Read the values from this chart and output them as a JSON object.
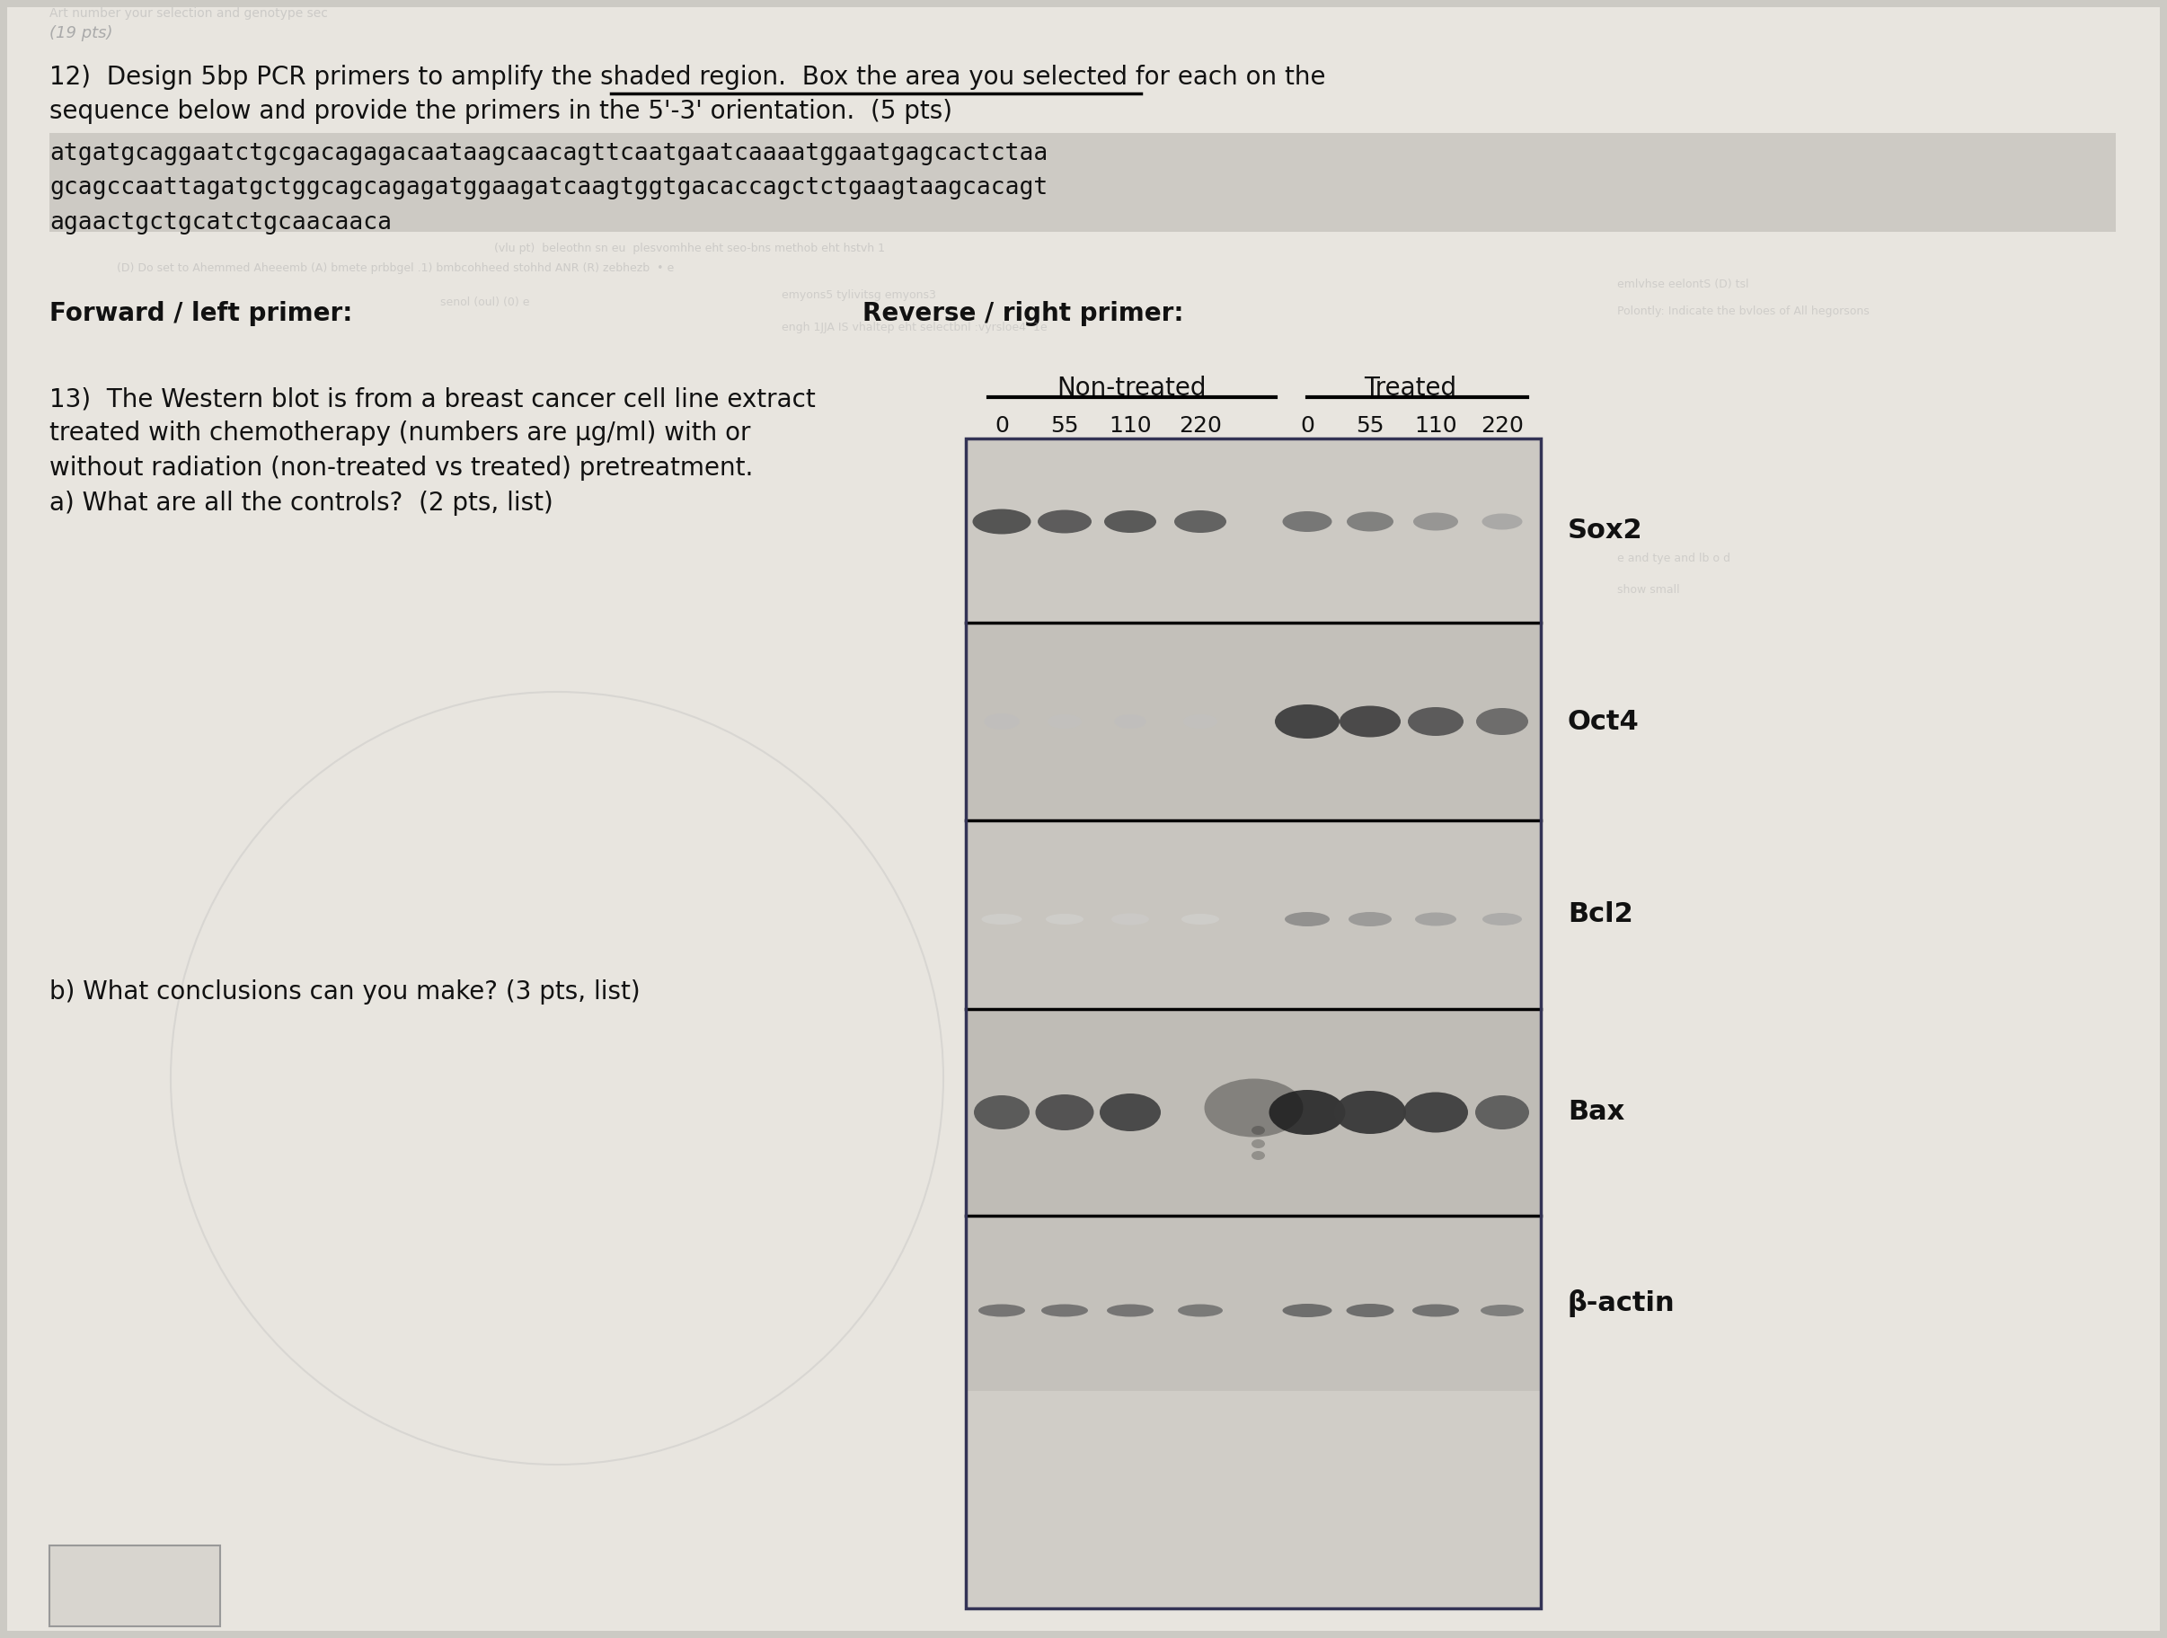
{
  "bg_color": "#cccac4",
  "page_bg": "#e8e5df",
  "title_top": "(19 pts)",
  "q12_text_line1": "12)  Design 5bp PCR primers to amplify the shaded region.  Box the area you selected for each on the",
  "q12_text_line2": "sequence below and provide the primers in the 5'-3' orientation.  (5 pts)",
  "seq_line1": "atgatgcaggaatctgcgacagagacaataagcaacagttcaatgaatcaaaatggaatgagcactctaa",
  "seq_line2": "gcagccaattagatgctggcagcagagatggaagatcaagtggtgacaccagctctgaagtaagcacagt",
  "seq_line3": "agaactgctgcatctgcaacaaca",
  "forward_label": "Forward / left primer:",
  "reverse_label": "Reverse / right primer:",
  "q13_line1": "13)  The Western blot is from a breast cancer cell line extract",
  "q13_line2": "treated with chemotherapy (numbers are μg/ml) with or",
  "q13_line3": "without radiation (non-treated vs treated) pretreatment.",
  "q13_line4": "a) What are all the controls?  (2 pts, list)",
  "non_treated_label": "Non-treated",
  "treated_label": "Treated",
  "lane_labels": [
    "0",
    "55",
    "110",
    "220",
    "0",
    "55",
    "110",
    "220"
  ],
  "protein_labels": [
    "Sox2",
    "Oct4",
    "Bcl2",
    "Bax",
    "β-actin"
  ],
  "qb_text": "b) What conclusions can you make? (3 pts, list)"
}
